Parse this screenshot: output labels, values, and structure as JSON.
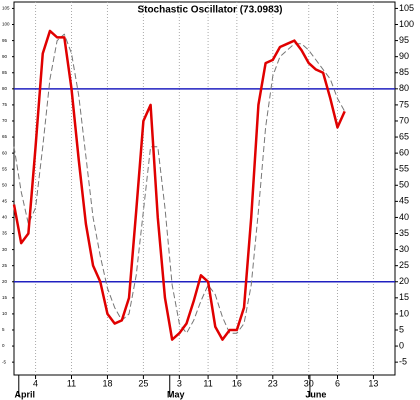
{
  "chart_data": {
    "type": "line",
    "title": "Stochastic Oscillator (73.0983)",
    "x": [
      0,
      1,
      2,
      3,
      4,
      5,
      6,
      7,
      8,
      9,
      10,
      11,
      12,
      13,
      14,
      15,
      16,
      17,
      18,
      19,
      20,
      21,
      22,
      23,
      24,
      25,
      26,
      27,
      28,
      29,
      30,
      31,
      32,
      33,
      34,
      35,
      36,
      37,
      38,
      39,
      40,
      41,
      42,
      43,
      44,
      45,
      46
    ],
    "series": [
      {
        "color": "#e00000",
        "dashed": false,
        "values": [
          44,
          32,
          35,
          62,
          91,
          98,
          96,
          96,
          80,
          58,
          38,
          25,
          20,
          10,
          7,
          8,
          15,
          42,
          70,
          75,
          40,
          15,
          2,
          4,
          7,
          14,
          22,
          20,
          6,
          2,
          5,
          5,
          12,
          40,
          75,
          88,
          89,
          93,
          94,
          95,
          92,
          88,
          86,
          85,
          77,
          68,
          73
        ]
      },
      {
        "color": "#777777",
        "dashed": true,
        "values": [
          62,
          48,
          38,
          43,
          62,
          83,
          95,
          97,
          91,
          78,
          59,
          40,
          28,
          18,
          12,
          8,
          10,
          22,
          42,
          62,
          62,
          43,
          19,
          7,
          4,
          8,
          14,
          19,
          16,
          9,
          4,
          4,
          7,
          19,
          42,
          68,
          84,
          90,
          92,
          94,
          94,
          92,
          89,
          86,
          83,
          77,
          73
        ]
      }
    ],
    "xlim": [
      0,
      53
    ],
    "xticks": [
      {
        "value": 3,
        "label": "4"
      },
      {
        "value": 8,
        "label": "11"
      },
      {
        "value": 13,
        "label": "18"
      },
      {
        "value": 18,
        "label": "25"
      },
      {
        "value": 23,
        "label": "3"
      },
      {
        "value": 27,
        "label": "11"
      },
      {
        "value": 31,
        "label": "16"
      },
      {
        "value": 36,
        "label": "23"
      },
      {
        "value": 41,
        "label": "30"
      },
      {
        "value": 45,
        "label": "6"
      },
      {
        "value": 50,
        "label": "13"
      }
    ],
    "month_labels": [
      {
        "value": 1.5,
        "label": "April"
      },
      {
        "value": 22.5,
        "label": "May"
      },
      {
        "value": 42,
        "label": "June"
      }
    ],
    "ylim": [
      -9,
      107
    ],
    "yticks": [
      -5,
      0,
      5,
      10,
      15,
      20,
      25,
      30,
      35,
      40,
      45,
      50,
      55,
      60,
      65,
      70,
      75,
      80,
      85,
      90,
      95,
      100,
      105
    ],
    "levels": [
      80,
      20
    ],
    "level_color": "#2020c0",
    "grid": true
  }
}
